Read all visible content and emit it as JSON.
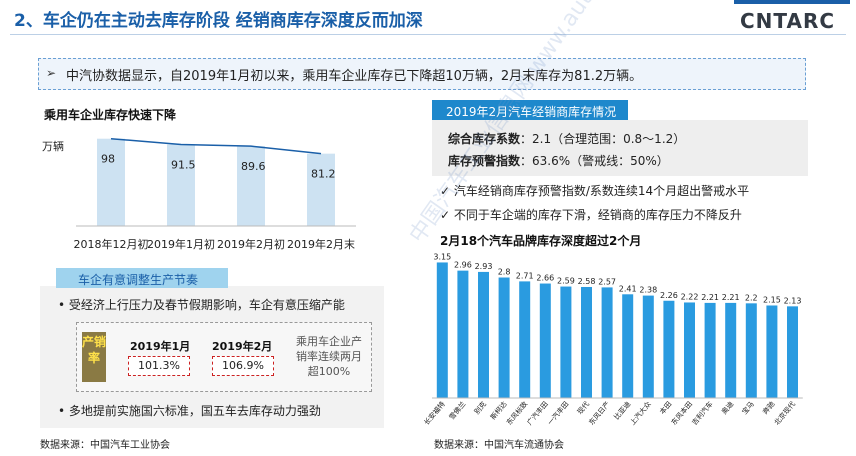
{
  "header": {
    "title": "2、车企仍在主动去库存阶段  经销商库存深度反而加深",
    "logo": "CNTARC"
  },
  "summary": {
    "arrow": "➢",
    "text": "中汽协数据显示，自2019年1月初以来，乘用车企业库存已下降超10万辆，2月末库存为81.2万辆。"
  },
  "left_panel": {
    "source": "数据来源：中国汽车工业协会",
    "adjust": {
      "title": "车企有意调整生产节奏",
      "bullet1": "•   受经济上行压力及春节假期影响，车企有意压缩产能",
      "bullet2": "•   多地提前实施国六标准，国五车去库存动力强劲",
      "rate_label": "产销率",
      "year1": "2019年1月",
      "value1": "101.3%",
      "year2": "2019年2月",
      "value2": "106.9%",
      "note": "乘用车企业产销率连续两月超100%"
    }
  },
  "right_panel": {
    "tab": "2019年2月汽车经销商库存情况",
    "metric1_label": "综合库存系数",
    "metric1_value": "：2.1（合理范围：0.8～1.2）",
    "metric2_label": "库存预警指数",
    "metric2_value": "：63.6%（警戒线：50%）",
    "check1": "✓   汽车经销商库存预警指数/系数连续14个月超出警戒水平",
    "check2": "✓   不同于车企端的库存下滑，经销商的库存压力不降反升",
    "source": "数据来源：中国汽车流通协会"
  },
  "watermark": "中国汽车工业信息网 www.autoinfo.org.cn",
  "chart_data": [
    {
      "type": "bar",
      "title": "乘用车企业库存快速下降",
      "ylabel": "万辆",
      "categories": [
        "2018年12月初",
        "2019年1月初",
        "2019年2月初",
        "2019年2月末"
      ],
      "values": [
        98,
        91.5,
        89.6,
        81.2
      ],
      "value_labels": [
        "98",
        "91.5",
        "89.6",
        "81.2"
      ],
      "trend_line": true,
      "bar_color": "#bcd8ee",
      "ylim": [
        0,
        110
      ],
      "grid": false
    },
    {
      "type": "bar",
      "title": "2月18个汽车品牌库存深度超过2个月",
      "categories": [
        "长安福特",
        "雪佛兰",
        "别克",
        "斯柯达",
        "东风标致",
        "广汽丰田",
        "一汽丰田",
        "现代",
        "东风日产",
        "比亚迪",
        "上汽大众",
        "本田",
        "东风本田",
        "吉利汽车",
        "奥迪",
        "宝马",
        "奔驰",
        "北京现代"
      ],
      "values": [
        3.15,
        2.96,
        2.93,
        2.8,
        2.71,
        2.66,
        2.59,
        2.58,
        2.57,
        2.41,
        2.38,
        2.26,
        2.22,
        2.21,
        2.21,
        2.2,
        2.15,
        2.13
      ],
      "value_labels": [
        "3.15",
        "2.96",
        "2.93",
        "2.8",
        "2.71",
        "2.66",
        "2.59",
        "2.58",
        "2.57",
        "2.41",
        "2.38",
        "2.26",
        "2.22",
        "2.21",
        "2.21",
        "2.2",
        "2.15",
        "2.13"
      ],
      "bar_color": "#2a9be0",
      "ylim": [
        0,
        3.3
      ],
      "grid": false
    }
  ]
}
